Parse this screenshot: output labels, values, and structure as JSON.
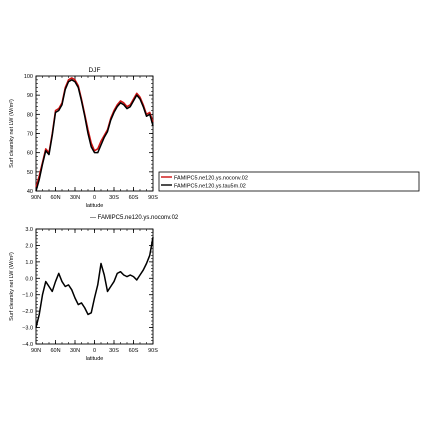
{
  "colors": {
    "red_series": "#cc1111",
    "black_series": "#000000",
    "background": "#ffffff"
  },
  "legend": {
    "entries": [
      {
        "label": "FAMIPC5.ne120.ys.noconv.02",
        "color": "#cc1111"
      },
      {
        "label": "FAMIPC5.ne120.ys.tau5m.02",
        "color": "#000000"
      }
    ]
  },
  "chart_data": [
    {
      "type": "line",
      "title": "DJF",
      "xlabel": "latitude",
      "ylabel": "Surf clearsky net LW (W/m²)",
      "x_axis_reversed": true,
      "xlim": [
        -90,
        90
      ],
      "ylim": [
        40,
        100
      ],
      "x_ticks": [
        90,
        60,
        30,
        0,
        -30,
        -60,
        -90
      ],
      "x_tick_labels": [
        "90N",
        "60N",
        "30N",
        "0",
        "30S",
        "60S",
        "90S"
      ],
      "y_ticks": [
        40,
        50,
        60,
        70,
        80,
        90,
        100
      ],
      "y_tick_labels": [
        "40",
        "50",
        "60",
        "70",
        "80",
        "90",
        "100"
      ],
      "x": [
        90,
        85,
        80,
        75,
        70,
        65,
        60,
        55,
        50,
        45,
        40,
        35,
        30,
        25,
        20,
        15,
        10,
        5,
        0,
        -5,
        -10,
        -15,
        -20,
        -25,
        -30,
        -35,
        -40,
        -45,
        -50,
        -55,
        -60,
        -65,
        -70,
        -75,
        -80,
        -85,
        -90
      ],
      "series": [
        {
          "name": "FAMIPC5.ne120.ys.noconv.02",
          "color": "#cc1111",
          "values": [
            42,
            48,
            55,
            62,
            60,
            70,
            82,
            83,
            86,
            94,
            98,
            99,
            98,
            95,
            88,
            80,
            72,
            65,
            61,
            62,
            66,
            69,
            72,
            78,
            82,
            85,
            87,
            86,
            84,
            85,
            88,
            91,
            89,
            85,
            80,
            81,
            76
          ]
        },
        {
          "name": "FAMIPC5.ne120.ys.tau5m.02",
          "color": "#000000",
          "values": [
            40,
            46,
            54,
            61,
            59,
            69,
            81,
            82,
            85,
            93,
            97,
            98,
            97,
            94,
            87,
            79,
            70,
            63,
            60,
            60,
            64,
            68,
            71,
            77,
            81,
            84,
            86,
            85,
            83,
            84,
            87,
            90,
            88,
            84,
            79,
            80,
            74
          ]
        }
      ]
    },
    {
      "type": "line",
      "title": "",
      "legend_text": "— FAMIPC5.ne120.ys.noconv.02",
      "xlabel": "latitude",
      "ylabel": "Surf clearsky net LW (W/m²)",
      "x_axis_reversed": true,
      "xlim": [
        -90,
        90
      ],
      "ylim": [
        -4.0,
        3.0
      ],
      "x_ticks": [
        90,
        60,
        30,
        0,
        -30,
        -60,
        -90
      ],
      "x_tick_labels": [
        "90N",
        "60N",
        "30N",
        "0",
        "30S",
        "60S",
        "90S"
      ],
      "y_ticks": [
        -4,
        -3,
        -2,
        -1,
        0,
        1,
        2,
        3
      ],
      "y_tick_labels": [
        "−4.0",
        "−3.0",
        "−2.0",
        "−1.0",
        "0.0",
        "1.0",
        "2.0",
        "3.0"
      ],
      "x": [
        90,
        85,
        80,
        75,
        70,
        65,
        60,
        55,
        50,
        45,
        40,
        35,
        30,
        25,
        20,
        15,
        10,
        5,
        0,
        -5,
        -10,
        -15,
        -20,
        -25,
        -30,
        -35,
        -40,
        -45,
        -50,
        -55,
        -60,
        -65,
        -70,
        -75,
        -80,
        -85,
        -90
      ],
      "series": [
        {
          "name": "",
          "color": "#000000",
          "values": [
            -3.0,
            -2.2,
            -1.0,
            -0.2,
            -0.5,
            -0.8,
            -0.2,
            0.3,
            -0.2,
            -0.5,
            -0.4,
            -0.7,
            -1.2,
            -1.6,
            -1.5,
            -1.8,
            -2.2,
            -2.1,
            -1.2,
            -0.4,
            0.9,
            0.2,
            -0.8,
            -0.5,
            -0.2,
            0.3,
            0.4,
            0.2,
            0.1,
            0.2,
            0.1,
            -0.1,
            0.2,
            0.5,
            0.9,
            1.4,
            2.5
          ]
        }
      ]
    }
  ]
}
